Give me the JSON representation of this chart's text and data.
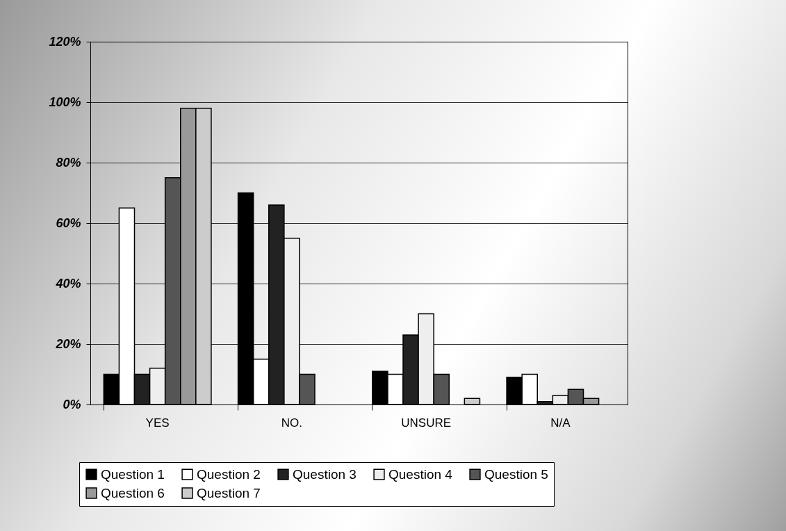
{
  "chart_data": {
    "type": "bar",
    "categories": [
      "YES",
      "NO.",
      "UNSURE",
      "N/A"
    ],
    "series": [
      {
        "name": "Question 1",
        "color": "#000000",
        "values": [
          10,
          70,
          11,
          9
        ]
      },
      {
        "name": "Question 2",
        "color": "#ffffff",
        "values": [
          65,
          15,
          10,
          10
        ]
      },
      {
        "name": "Question 3",
        "color": "#222222",
        "values": [
          10,
          66,
          23,
          1
        ]
      },
      {
        "name": "Question 4",
        "color": "#eeeeee",
        "values": [
          12,
          55,
          30,
          3
        ]
      },
      {
        "name": "Question 5",
        "color": "#555555",
        "values": [
          75,
          10,
          10,
          5
        ]
      },
      {
        "name": "Question 6",
        "color": "#999999",
        "values": [
          98,
          0,
          0,
          2
        ]
      },
      {
        "name": "Question 7",
        "color": "#cccccc",
        "values": [
          98,
          0,
          2,
          0
        ]
      }
    ],
    "ylim": [
      0,
      120
    ],
    "yticks": [
      {
        "value": 0,
        "label": "0%"
      },
      {
        "value": 20,
        "label": "20%"
      },
      {
        "value": 40,
        "label": "40%"
      },
      {
        "value": 60,
        "label": "60%"
      },
      {
        "value": 80,
        "label": "80%"
      },
      {
        "value": 100,
        "label": "100%"
      },
      {
        "value": 120,
        "label": "120%"
      }
    ],
    "grid": "y",
    "legend": "bottom"
  }
}
